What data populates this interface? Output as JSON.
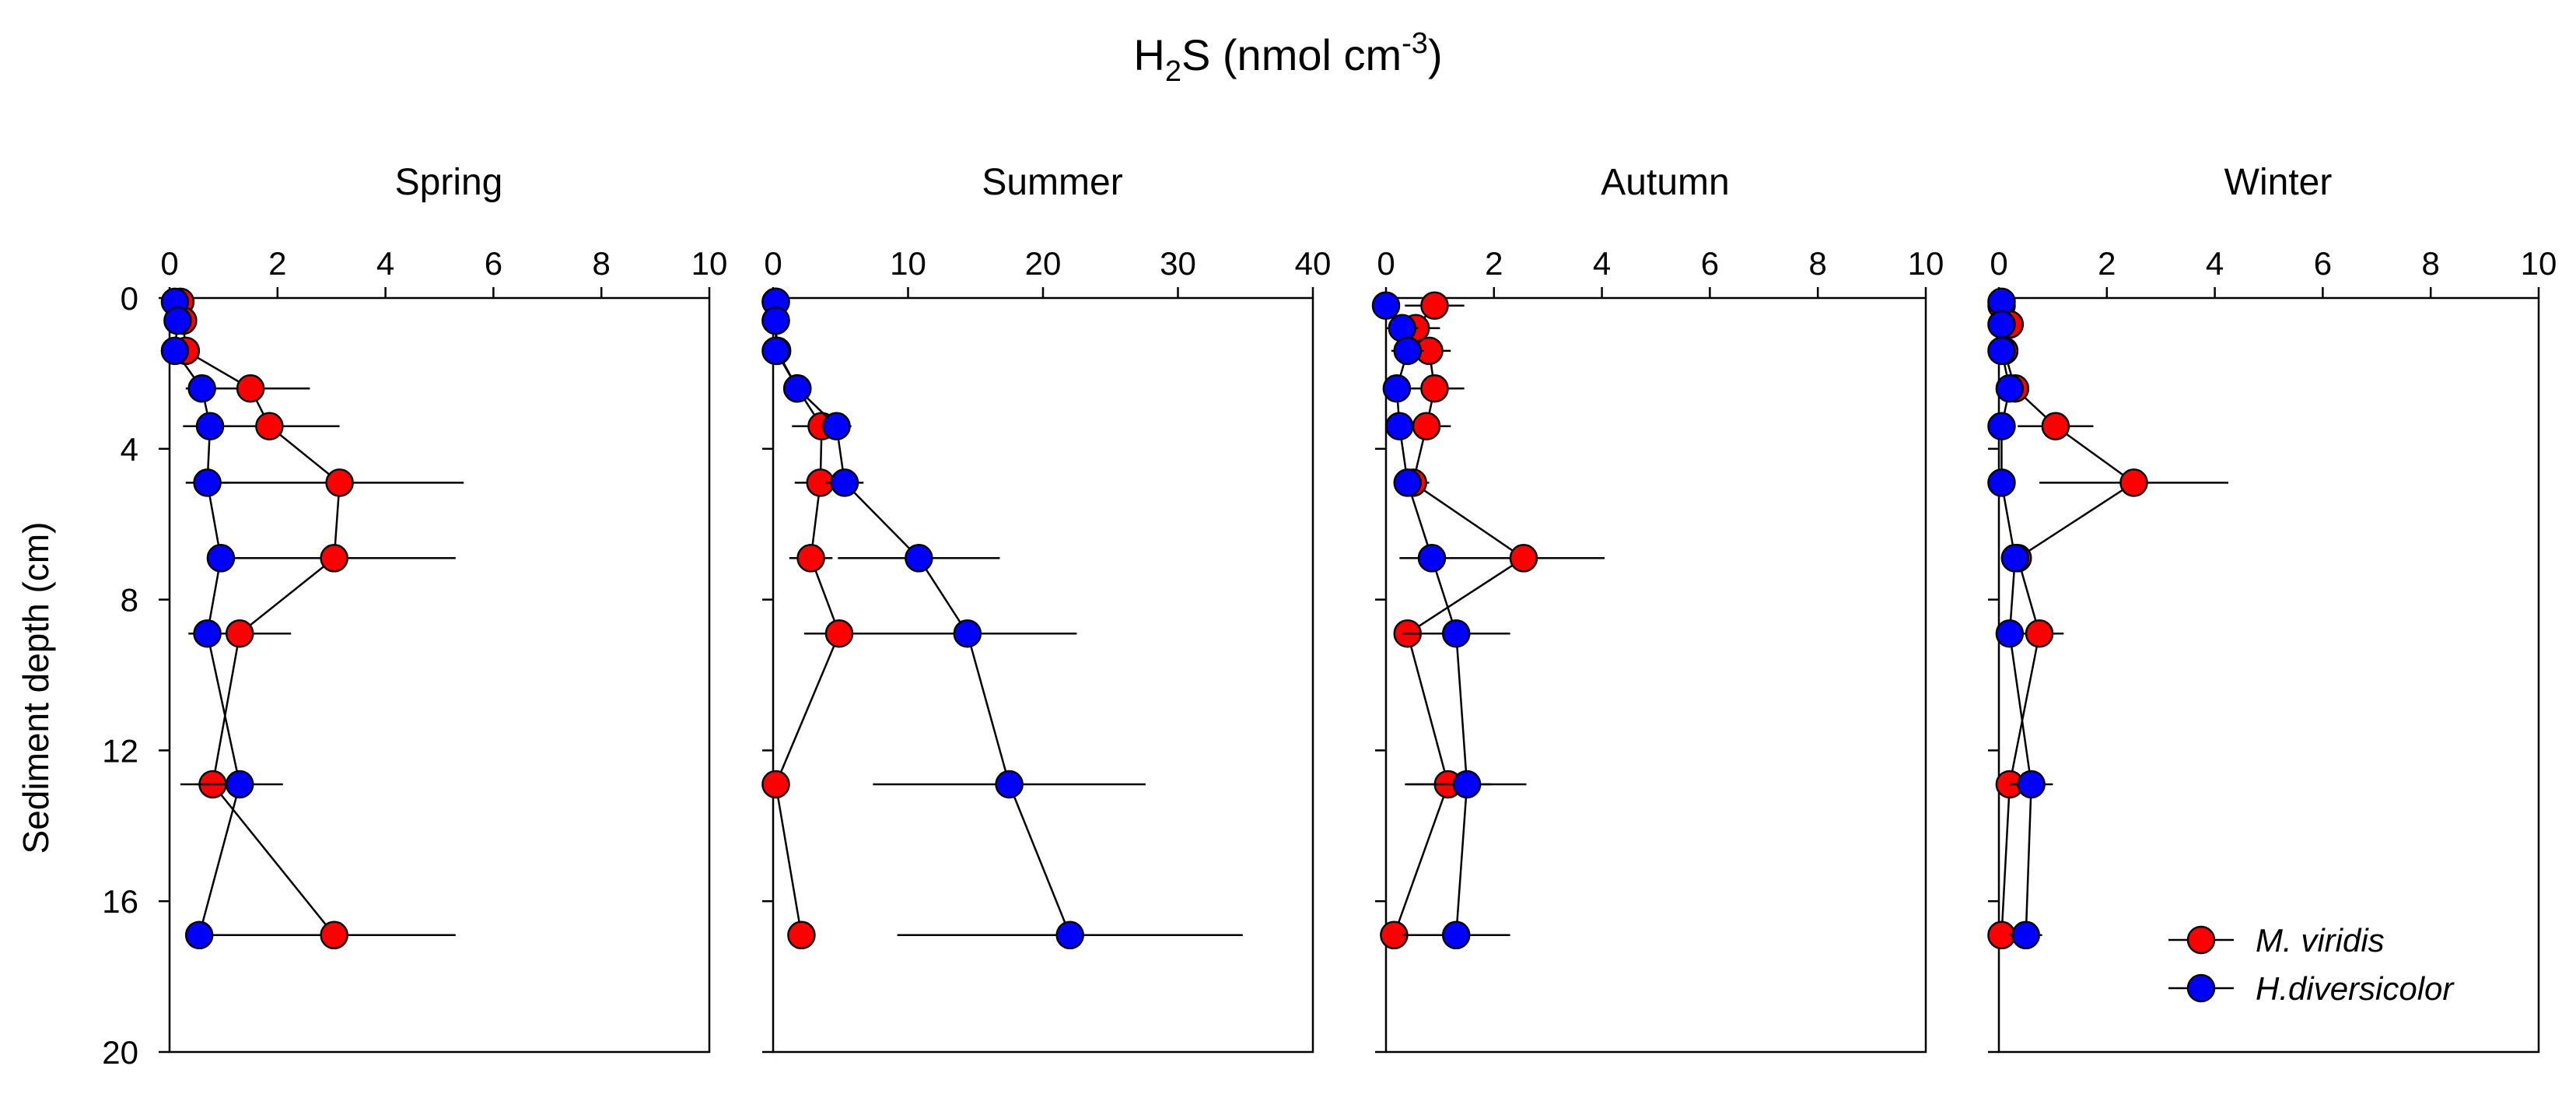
{
  "figure": {
    "title_main": "H",
    "title_sub": "2",
    "title_rest": "S (nmol cm",
    "title_sup": "-3",
    "title_close": ")",
    "ylabel": "Sediment depth (cm)"
  },
  "legend": {
    "entries": [
      "M. viridis",
      "H.diversicolor"
    ]
  },
  "colors": {
    "m_viridis": "#ff0000",
    "h_diversicolor": "#0000ff",
    "axis": "#000000"
  },
  "chart_data": [
    {
      "type": "scatter",
      "title": "Spring",
      "xlabel": "H2S (nmol cm-3)",
      "ylabel": "Sediment depth (cm)",
      "xlim": [
        0,
        10
      ],
      "ylim": [
        0,
        20
      ],
      "y_inverted": true,
      "xticks": [
        0,
        2,
        4,
        6,
        8,
        10
      ],
      "yticks": [
        0,
        4,
        8,
        12,
        16,
        20
      ],
      "series": [
        {
          "name": "M. viridis",
          "color": "#ff0000",
          "depth": [
            0.1,
            0.6,
            1.4,
            2.4,
            3.4,
            4.9,
            6.9,
            8.9,
            12.9,
            16.9
          ],
          "values": [
            0.2,
            0.25,
            0.3,
            1.5,
            1.85,
            3.15,
            3.05,
            1.3,
            0.8,
            3.05
          ],
          "error": [
            0,
            0,
            0,
            1.1,
            1.3,
            2.3,
            2.25,
            0.95,
            0.6,
            2.25
          ]
        },
        {
          "name": "H.diversicolor",
          "color": "#0000ff",
          "depth": [
            0.1,
            0.6,
            1.4,
            2.4,
            3.4,
            4.9,
            6.9,
            8.9,
            12.9,
            16.9
          ],
          "values": [
            0.1,
            0.15,
            0.1,
            0.6,
            0.75,
            0.7,
            0.95,
            0.7,
            1.3,
            0.55
          ],
          "error": [
            0,
            0,
            0,
            0.3,
            0.5,
            0.4,
            0,
            0.3,
            0.8,
            0
          ]
        }
      ]
    },
    {
      "type": "scatter",
      "title": "Summer",
      "xlabel": "H2S (nmol cm-3)",
      "ylabel": "Sediment depth (cm)",
      "xlim": [
        0,
        40
      ],
      "ylim": [
        0,
        20
      ],
      "y_inverted": true,
      "xticks": [
        0,
        10,
        20,
        30,
        40
      ],
      "yticks": [
        0,
        4,
        8,
        12,
        16,
        20
      ],
      "series": [
        {
          "name": "M. viridis",
          "color": "#ff0000",
          "depth": [
            0.1,
            0.6,
            1.4,
            2.4,
            3.4,
            4.9,
            6.9,
            8.9,
            12.9,
            16.9
          ],
          "values": [
            0.2,
            0.2,
            0.3,
            1.8,
            3.6,
            3.5,
            2.8,
            4.9,
            0.2,
            2.1
          ],
          "error": [
            0,
            0,
            0,
            0.5,
            2.2,
            1.9,
            1.6,
            2.6,
            0,
            0
          ]
        },
        {
          "name": "H.diversicolor",
          "color": "#0000ff",
          "depth": [
            0.1,
            0.6,
            1.4,
            2.4,
            3.4,
            4.9,
            6.9,
            8.9,
            12.9,
            16.9
          ],
          "values": [
            0.2,
            0.2,
            0.2,
            1.8,
            4.7,
            5.3,
            10.8,
            14.4,
            17.5,
            22.0
          ],
          "error": [
            0,
            0,
            0,
            0,
            0.9,
            1.4,
            6.0,
            8.1,
            10.1,
            12.8
          ]
        }
      ]
    },
    {
      "type": "scatter",
      "title": "Autumn",
      "xlabel": "H2S (nmol cm-3)",
      "ylabel": "Sediment depth (cm)",
      "xlim": [
        0,
        10
      ],
      "ylim": [
        0,
        20
      ],
      "y_inverted": true,
      "xticks": [
        0,
        2,
        4,
        6,
        8,
        10
      ],
      "yticks": [
        0,
        4,
        8,
        12,
        16,
        20
      ],
      "series": [
        {
          "name": "M. viridis",
          "color": "#ff0000",
          "depth": [
            0.2,
            0.8,
            1.4,
            2.4,
            3.4,
            4.9,
            6.9,
            8.9,
            12.9,
            16.9
          ],
          "values": [
            0.9,
            0.55,
            0.8,
            0.9,
            0.75,
            0.5,
            2.55,
            0.4,
            1.15,
            0.15
          ],
          "error": [
            0.55,
            0.45,
            0.4,
            0.55,
            0.45,
            0.3,
            1.5,
            0.2,
            0.8,
            0
          ]
        },
        {
          "name": "H.diversicolor",
          "color": "#0000ff",
          "depth": [
            0.2,
            0.8,
            1.4,
            2.4,
            3.4,
            4.9,
            6.9,
            8.9,
            12.9,
            16.9
          ],
          "values": [
            0.0,
            0.3,
            0.4,
            0.2,
            0.25,
            0.4,
            0.85,
            1.3,
            1.5,
            1.3
          ],
          "error": [
            0,
            0.3,
            0.3,
            0.2,
            0.2,
            0,
            0.6,
            1.0,
            1.1,
            1.0
          ]
        }
      ]
    },
    {
      "type": "scatter",
      "title": "Winter",
      "xlabel": "H2S (nmol cm-3)",
      "ylabel": "Sediment depth (cm)",
      "xlim": [
        0,
        10
      ],
      "ylim": [
        0,
        20
      ],
      "y_inverted": true,
      "xticks": [
        0,
        2,
        4,
        6,
        8,
        10
      ],
      "yticks": [
        0,
        4,
        8,
        12,
        16,
        20
      ],
      "series": [
        {
          "name": "M. viridis",
          "color": "#ff0000",
          "depth": [
            0.2,
            0.7,
            1.4,
            2.4,
            3.4,
            4.9,
            6.9,
            8.9,
            12.9,
            16.9
          ],
          "values": [
            0.05,
            0.2,
            0.1,
            0.3,
            1.05,
            2.5,
            0.35,
            0.75,
            0.2,
            0.05
          ],
          "error": [
            0,
            0,
            0,
            0,
            0.7,
            1.75,
            0,
            0.45,
            0,
            0
          ]
        },
        {
          "name": "H.diversicolor",
          "color": "#0000ff",
          "depth": [
            0.1,
            0.7,
            1.4,
            2.4,
            3.4,
            4.9,
            6.9,
            8.9,
            12.9,
            16.9
          ],
          "values": [
            0.05,
            0.05,
            0.05,
            0.2,
            0.05,
            0.05,
            0.3,
            0.2,
            0.6,
            0.5
          ],
          "error": [
            0,
            0,
            0,
            0,
            0,
            0,
            0,
            0,
            0.4,
            0.3
          ]
        }
      ]
    }
  ]
}
